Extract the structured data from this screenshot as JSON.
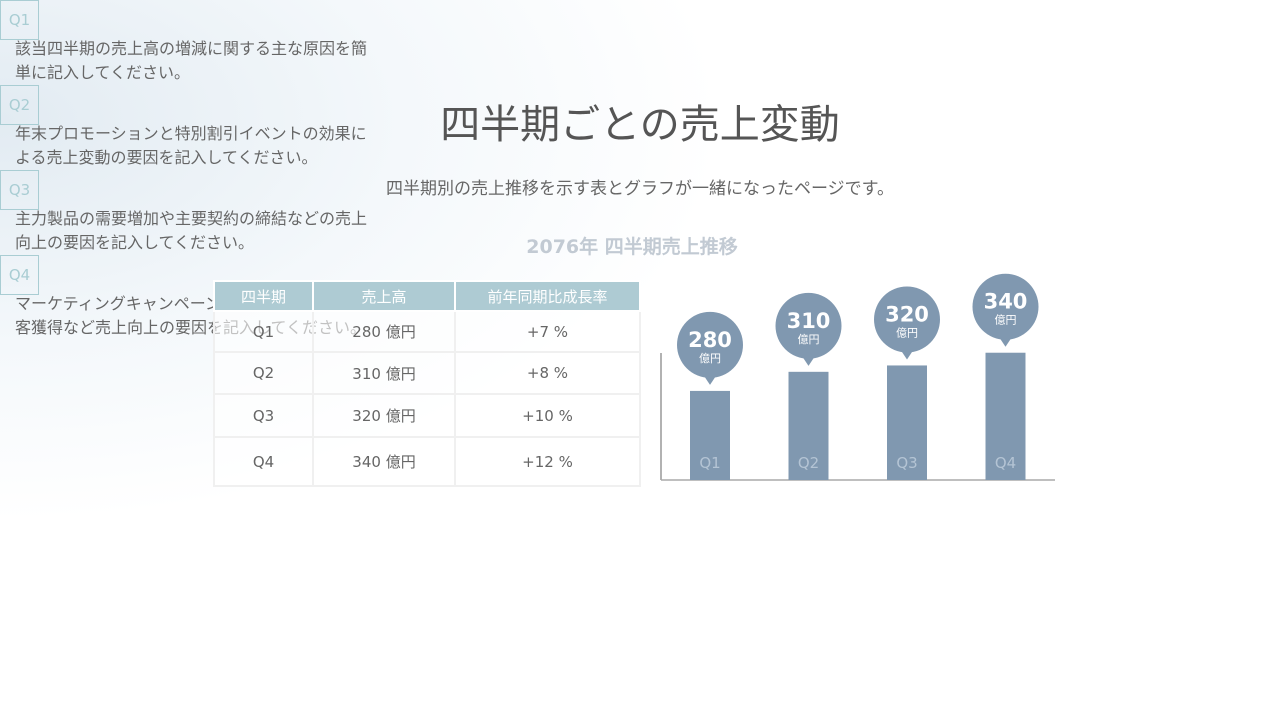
{
  "header": {
    "title": "四半期ごとの売上変動",
    "subtitle": "四半期別の売上推移を示す表とグラフが一緒になったページです。"
  },
  "section_title": "2076年 四半期売上推移",
  "table": {
    "columns": [
      "四半期",
      "売上高",
      "前年同期比成長率"
    ],
    "rows": [
      [
        "Q1",
        "280 億円",
        "+7 %"
      ],
      [
        "Q2",
        "310 億円",
        "+8 %"
      ],
      [
        "Q3",
        "320 億円",
        "+10 %"
      ],
      [
        "Q4",
        "340 億円",
        "+12 %"
      ]
    ]
  },
  "chart_data": {
    "type": "bar",
    "categories": [
      "Q1",
      "Q2",
      "Q3",
      "Q4"
    ],
    "values": [
      280,
      310,
      320,
      340
    ],
    "unit": "億円",
    "color": "#8098b0",
    "ylim": [
      140,
      360
    ]
  },
  "notes": [
    {
      "badge": "Q1",
      "text": "該当四半期の売上高の増減に関する主な原因を簡単に記入してください。"
    },
    {
      "badge": "Q2",
      "text": "年末プロモーションと特別割引イベントの効果による売上変動の要因を記入してください。"
    },
    {
      "badge": "Q3",
      "text": "主力製品の需要増加や主要契約の締結などの売上向上の要因を記入してください。"
    },
    {
      "badge": "Q4",
      "text": "マーケティングキャンペーンまたは主要な新規顧客獲得など売上向上の要因を記入してください。"
    }
  ]
}
